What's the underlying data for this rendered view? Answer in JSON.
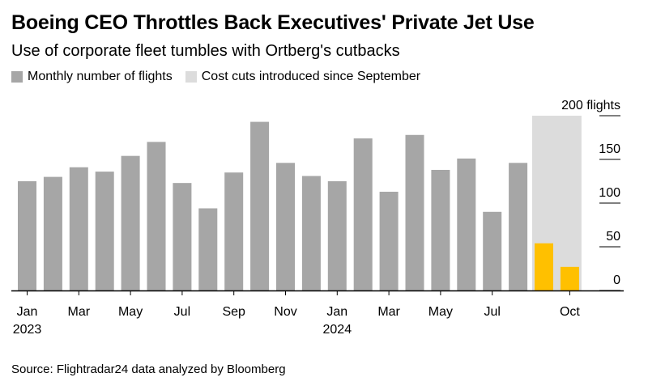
{
  "title": "Boeing CEO Throttles Back Executives' Private Jet Use",
  "subtitle": "Use of corporate fleet tumbles with Ortberg's cutbacks",
  "legend": {
    "flights_label": "Monthly number of flights",
    "cost_cuts_label": "Cost cuts introduced since September"
  },
  "source": "Source: Flightradar24 data analyzed by Bloomberg",
  "colors": {
    "bar": "#a6a6a6",
    "highlight": "#ffc000",
    "shade": "#dcdcdc",
    "axis": "#000000"
  },
  "chart_data": {
    "type": "bar",
    "categories": [
      "Jan 2023",
      "Feb 2023",
      "Mar 2023",
      "Apr 2023",
      "May 2023",
      "Jun 2023",
      "Jul 2023",
      "Aug 2023",
      "Sep 2023",
      "Oct 2023",
      "Nov 2023",
      "Dec 2023",
      "Jan 2024",
      "Feb 2024",
      "Mar 2024",
      "Apr 2024",
      "May 2024",
      "Jun 2024",
      "Jul 2024",
      "Aug 2024",
      "Sep 2024",
      "Oct 2024"
    ],
    "values": [
      125,
      130,
      141,
      136,
      154,
      170,
      123,
      94,
      135,
      193,
      146,
      131,
      125,
      174,
      113,
      178,
      138,
      151,
      90,
      146,
      54,
      27
    ],
    "highlighted_categories": [
      "Sep 2024",
      "Oct 2024"
    ],
    "shaded_range": [
      "Sep 2024",
      "Oct 2024"
    ],
    "ylim": [
      0,
      200
    ],
    "yticks": [
      0,
      50,
      100,
      150,
      200
    ],
    "ytick_labels": [
      "0",
      "50",
      "100",
      "150",
      "200 flights"
    ],
    "xtick_labels": [
      {
        "index": 0,
        "label": "Jan",
        "year": "2023"
      },
      {
        "index": 2,
        "label": "Mar"
      },
      {
        "index": 4,
        "label": "May"
      },
      {
        "index": 6,
        "label": "Jul"
      },
      {
        "index": 8,
        "label": "Sep"
      },
      {
        "index": 10,
        "label": "Nov"
      },
      {
        "index": 12,
        "label": "Jan",
        "year": "2024"
      },
      {
        "index": 14,
        "label": "Mar"
      },
      {
        "index": 16,
        "label": "May"
      },
      {
        "index": 18,
        "label": "Jul"
      },
      {
        "index": 21,
        "label": "Oct"
      }
    ],
    "y_axis_position": "right",
    "grid": false
  }
}
